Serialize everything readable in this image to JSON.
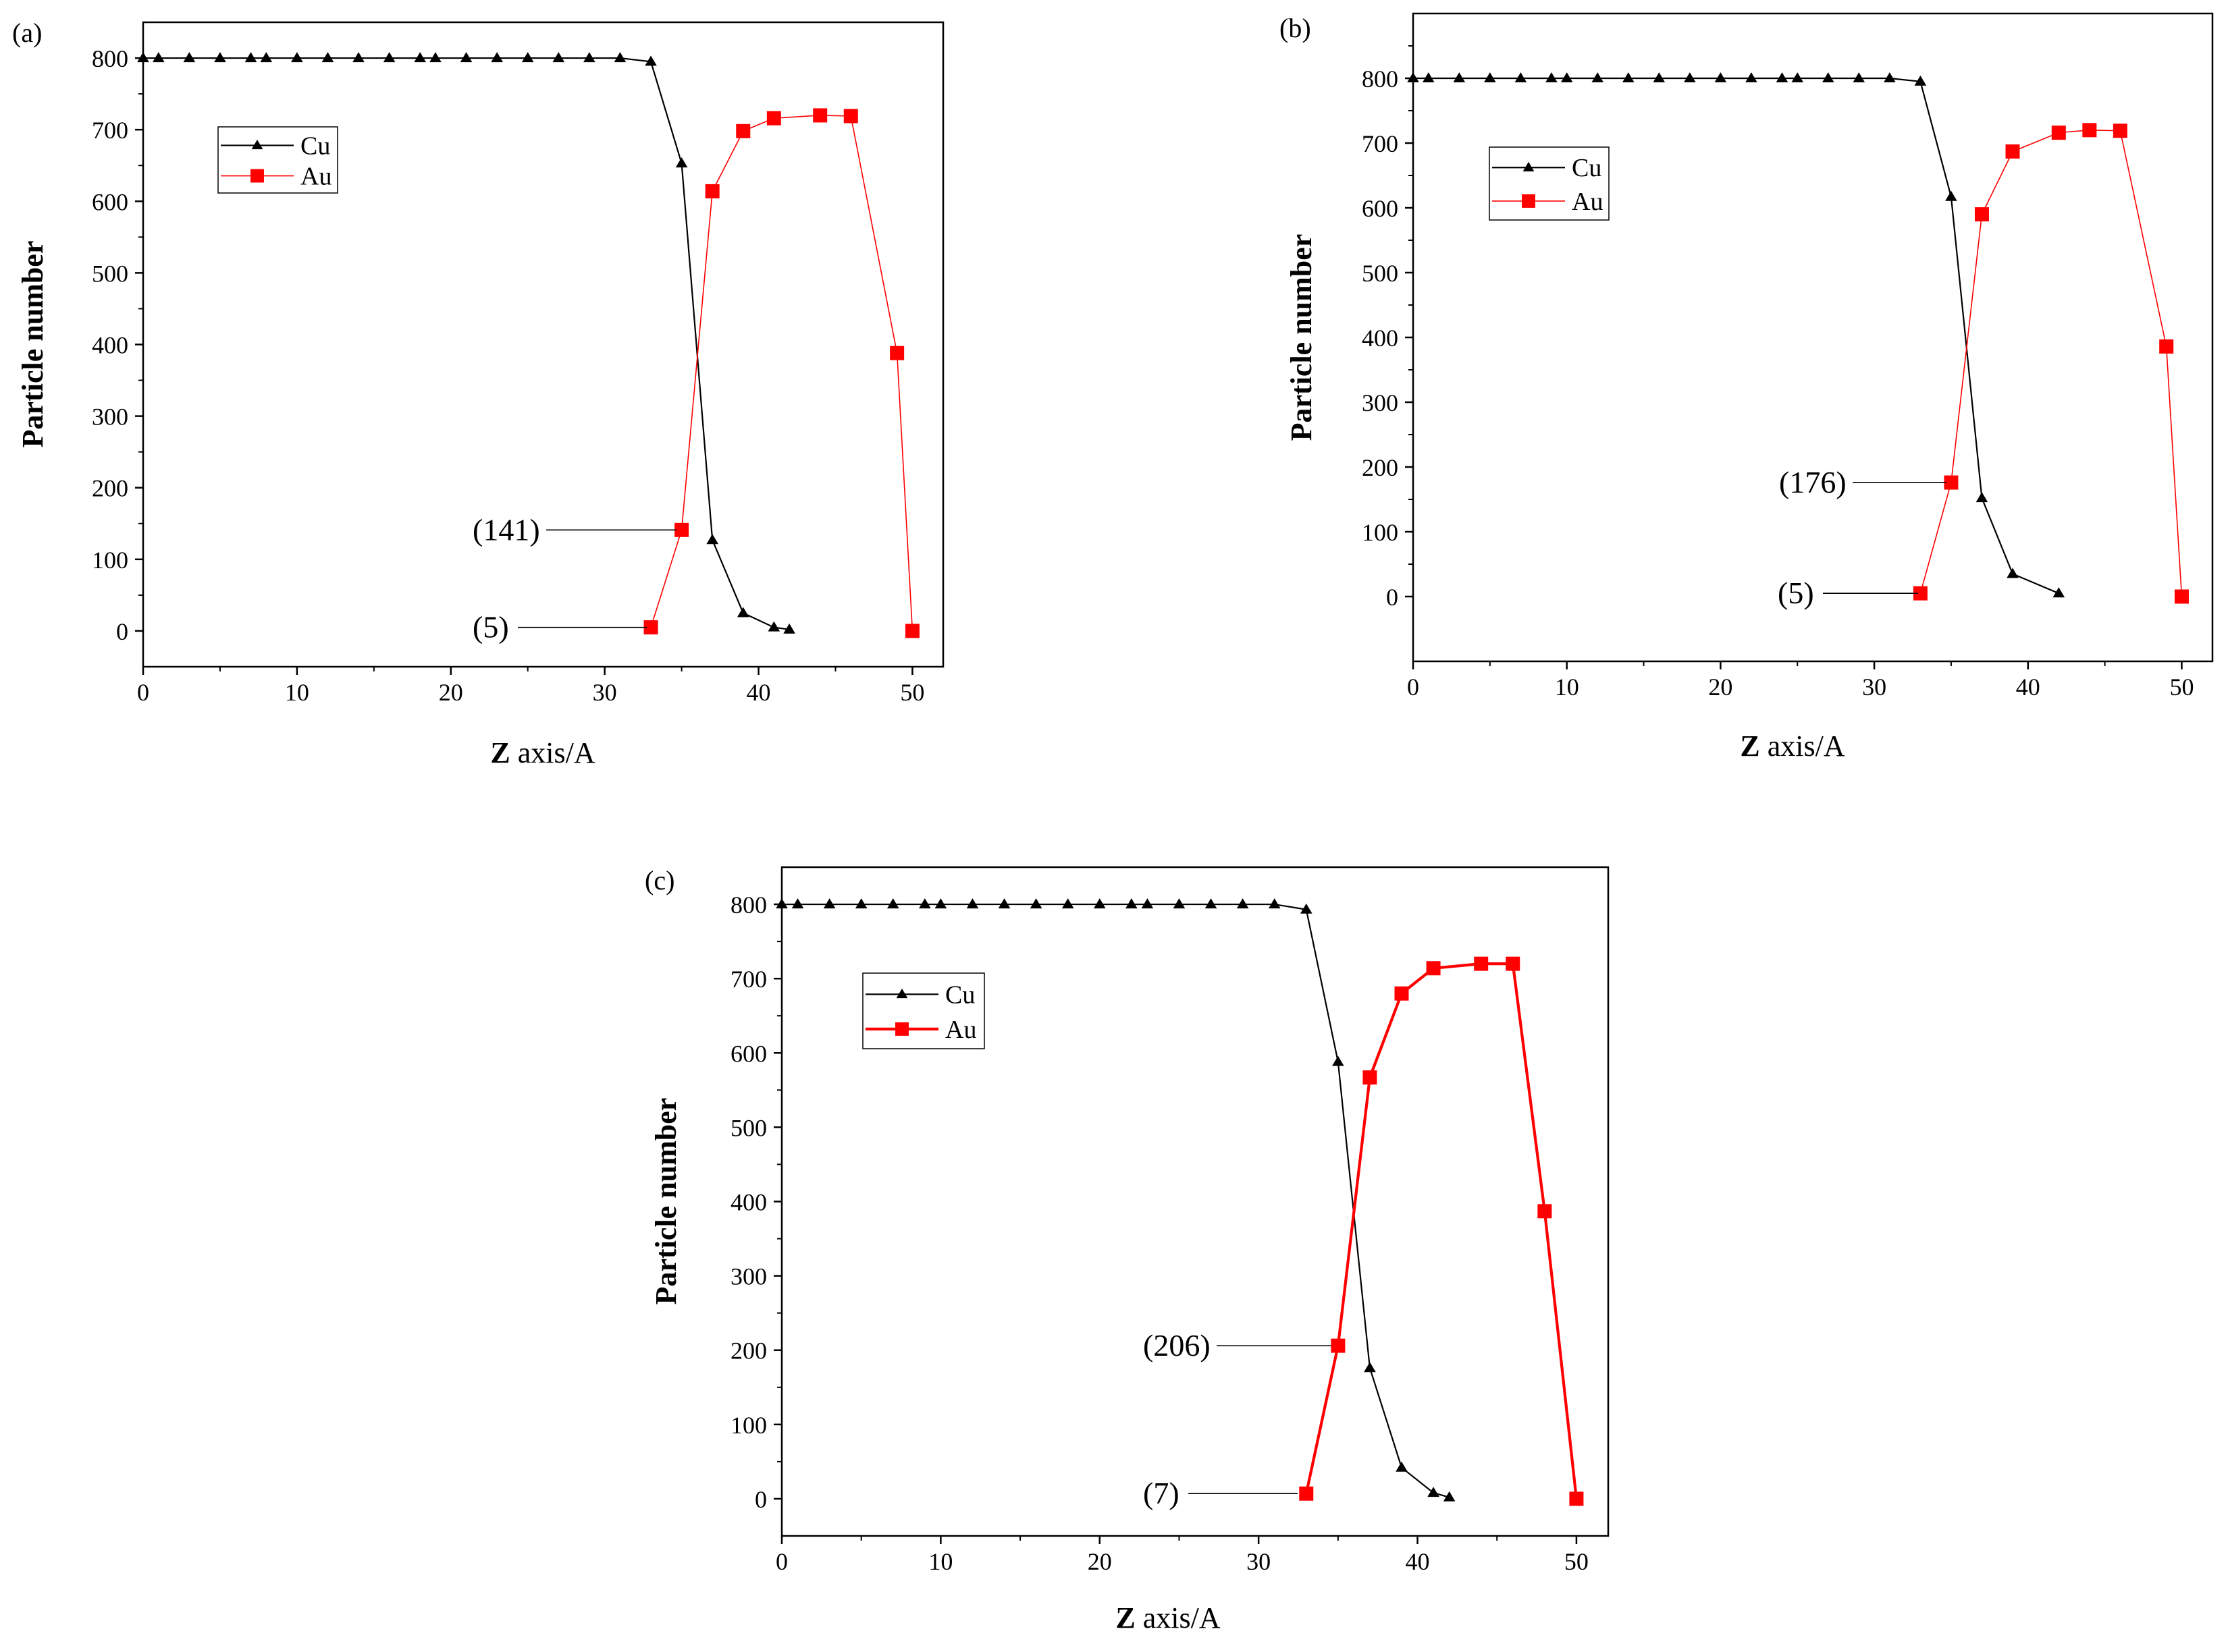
{
  "chart_data": [
    {
      "type": "line",
      "panel_label": "(a)",
      "title": "",
      "xlabel_bold": "Z",
      "xlabel_rest": " axis/A",
      "ylabel": "Particle number",
      "xlim": [
        0,
        52
      ],
      "ylim": [
        -50,
        850
      ],
      "xticks": [
        0,
        10,
        20,
        30,
        40,
        50
      ],
      "yticks": [
        0,
        100,
        200,
        300,
        400,
        500,
        600,
        700,
        800
      ],
      "legend": {
        "placement": "upper-left"
      },
      "series": [
        {
          "name": "Cu",
          "color": "#000000",
          "marker": "triangle",
          "x": [
            0,
            1,
            3,
            5,
            7,
            8,
            10,
            12,
            14,
            16,
            18,
            19,
            21,
            23,
            25,
            27,
            29,
            31,
            33,
            35,
            37,
            39,
            41,
            42
          ],
          "y": [
            800,
            800,
            800,
            800,
            800,
            800,
            800,
            800,
            800,
            800,
            800,
            800,
            800,
            800,
            800,
            800,
            800,
            800,
            795,
            653,
            127,
            25,
            5,
            2
          ]
        },
        {
          "name": "Au",
          "color": "#ff0000",
          "marker": "square",
          "x": [
            33,
            35,
            37,
            39,
            41,
            44,
            46,
            49,
            50
          ],
          "y": [
            5,
            141,
            614,
            698,
            716,
            720,
            719,
            388,
            0
          ]
        }
      ],
      "annotations": [
        {
          "text": "(141)",
          "x": 35,
          "y": 141
        },
        {
          "text": "(5)",
          "x": 33,
          "y": 5
        }
      ]
    },
    {
      "type": "line",
      "panel_label": "(b)",
      "title": "",
      "xlabel_bold": "Z",
      "xlabel_rest": " axis/A",
      "ylabel": "Particle number",
      "xlim": [
        0,
        52
      ],
      "ylim": [
        -100,
        900
      ],
      "xticks": [
        0,
        10,
        20,
        30,
        40,
        50
      ],
      "yticks": [
        0,
        100,
        200,
        300,
        400,
        500,
        600,
        700,
        800
      ],
      "legend": {
        "placement": "upper-left"
      },
      "series": [
        {
          "name": "Cu",
          "color": "#000000",
          "marker": "triangle",
          "x": [
            0,
            1,
            3,
            5,
            7,
            9,
            10,
            12,
            14,
            16,
            18,
            20,
            22,
            24,
            25,
            27,
            29,
            31,
            33,
            35,
            37,
            39,
            42
          ],
          "y": [
            800,
            800,
            800,
            800,
            800,
            800,
            800,
            800,
            800,
            800,
            800,
            800,
            800,
            800,
            800,
            800,
            800,
            800,
            795,
            617,
            152,
            35,
            5
          ]
        },
        {
          "name": "Au",
          "color": "#ff0000",
          "marker": "square",
          "x": [
            33,
            35,
            37,
            39,
            42,
            44,
            46,
            49,
            50
          ],
          "y": [
            5,
            176,
            590,
            687,
            716,
            720,
            719,
            386,
            0
          ]
        }
      ],
      "annotations": [
        {
          "text": "(176)",
          "x": 35,
          "y": 176
        },
        {
          "text": "(5)",
          "x": 33,
          "y": 5
        }
      ]
    },
    {
      "type": "line",
      "panel_label": "(c)",
      "title": "",
      "xlabel_bold": "Z",
      "xlabel_rest": " axis/A",
      "ylabel": "Particle number",
      "xlim": [
        0,
        52
      ],
      "ylim": [
        -50,
        850
      ],
      "xticks": [
        0,
        10,
        20,
        30,
        40,
        50
      ],
      "yticks": [
        0,
        100,
        200,
        300,
        400,
        500,
        600,
        700,
        800
      ],
      "legend": {
        "placement": "upper-left"
      },
      "series": [
        {
          "name": "Cu",
          "color": "#000000",
          "marker": "triangle",
          "x": [
            0,
            1,
            3,
            5,
            7,
            9,
            10,
            12,
            14,
            16,
            18,
            20,
            22,
            23,
            25,
            27,
            29,
            31,
            33,
            35,
            37,
            39,
            41,
            42
          ],
          "y": [
            800,
            800,
            800,
            800,
            800,
            800,
            800,
            800,
            800,
            800,
            800,
            800,
            800,
            800,
            800,
            800,
            800,
            800,
            793,
            588,
            176,
            42,
            8,
            2
          ]
        },
        {
          "name": "Au",
          "color": "#ff0000",
          "marker": "square",
          "x": [
            33,
            35,
            37,
            39,
            41,
            44,
            46,
            48,
            50
          ],
          "y": [
            7,
            206,
            567,
            680,
            714,
            720,
            720,
            387,
            0
          ]
        }
      ],
      "annotations": [
        {
          "text": "(206)",
          "x": 35,
          "y": 206
        },
        {
          "text": "(7)",
          "x": 33,
          "y": 7
        }
      ]
    }
  ]
}
